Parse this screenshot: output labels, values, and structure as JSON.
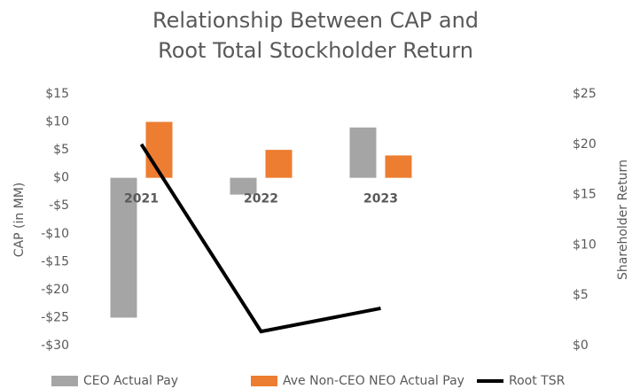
{
  "chart_data": {
    "type": "bar",
    "title": "Relationship Between CAP and Root Total Stockholder Return",
    "ylabel": "CAP (in MM)",
    "y2label": "Shareholder Return",
    "categories": [
      "2021",
      "2022",
      "2023"
    ],
    "series": [
      {
        "name": "CEO Actual Pay",
        "color": "#a5a5a5",
        "type": "bar",
        "values": [
          -25,
          -3,
          9
        ]
      },
      {
        "name": "Ave Non-CEO NEO Actual Pay",
        "color": "#ed7d31",
        "type": "bar",
        "values": [
          10,
          5,
          4
        ]
      },
      {
        "name": "Root TSR",
        "color": "#000000",
        "type": "line",
        "axis": "y2",
        "values": [
          20,
          1.4,
          3.7
        ]
      }
    ],
    "ylim": [
      -30,
      15
    ],
    "yticks": [
      {
        "value": -30,
        "label": "-$30"
      },
      {
        "value": -25,
        "label": "-$25"
      },
      {
        "value": -20,
        "label": "-$20"
      },
      {
        "value": -15,
        "label": "-$15"
      },
      {
        "value": -10,
        "label": "-$10"
      },
      {
        "value": -5,
        "label": "-$5"
      },
      {
        "value": 0,
        "label": "$0"
      },
      {
        "value": 5,
        "label": "$5"
      },
      {
        "value": 10,
        "label": "$10"
      },
      {
        "value": 15,
        "label": "$15"
      }
    ],
    "y2lim": [
      0,
      25
    ],
    "y2ticks": [
      {
        "value": 0,
        "label": "$0"
      },
      {
        "value": 5,
        "label": "$5"
      },
      {
        "value": 10,
        "label": "$10"
      },
      {
        "value": 15,
        "label": "$15"
      },
      {
        "value": 20,
        "label": "$20"
      },
      {
        "value": 25,
        "label": "$25"
      }
    ],
    "grid": false,
    "legend": "bottom"
  }
}
